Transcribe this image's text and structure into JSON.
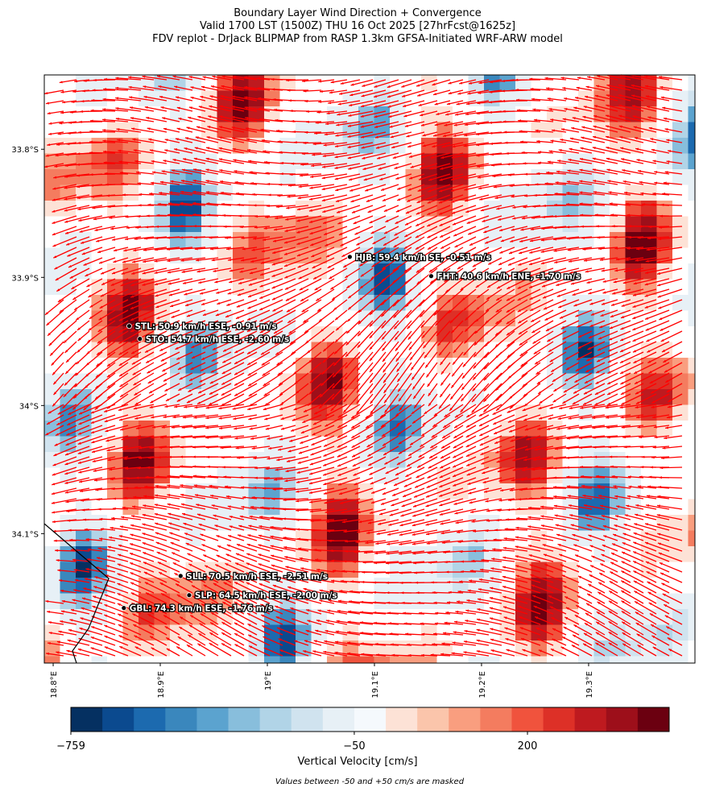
{
  "title": [
    "Boundary Layer Wind Direction + Convergence",
    "Valid 1700 LST (1500Z) THU 16 Oct 2025 [27hrFcst@1625z]",
    "FDV replot - DrJack BLIPMAP from RASP 1.3km GFSA-Initiated WRF-ARW model"
  ],
  "map": {
    "xlim": [
      18.7917,
      19.3993
    ],
    "ylim": [
      -34.201,
      -33.742
    ],
    "xticks": [
      {
        "value": 18.8,
        "label": "18.8°E"
      },
      {
        "value": 18.9,
        "label": "18.9°E"
      },
      {
        "value": 19.0,
        "label": "19°E"
      },
      {
        "value": 19.1,
        "label": "19.1°E"
      },
      {
        "value": 19.2,
        "label": "19.2°E"
      },
      {
        "value": 19.3,
        "label": "19.3°E"
      }
    ],
    "yticks": [
      {
        "value": -33.8,
        "label": "33.8°S"
      },
      {
        "value": -33.9,
        "label": "33.9°S"
      },
      {
        "value": -34.0,
        "label": "34°S"
      },
      {
        "value": -34.1,
        "label": "34.1°S"
      }
    ],
    "stations": [
      {
        "label": "HJB: 59.4 km/h SE, -0.51 m/s",
        "lon": 19.077,
        "lat": -33.884
      },
      {
        "label": "FHT: 40.6 km/h ENE, -1.70 m/s",
        "lon": 19.153,
        "lat": -33.899
      },
      {
        "label": "STL: 50.9 km/h ESE, -0.91 m/s",
        "lon": 18.871,
        "lat": -33.938
      },
      {
        "label": "STO: 54.7 km/h ESE, -2.60 m/s",
        "lon": 18.881,
        "lat": -33.948
      },
      {
        "label": "SLL: 70.5 km/h ESE, -2.51 m/s",
        "lon": 18.919,
        "lat": -34.133
      },
      {
        "label": "SLP: 64.5 km/h ESE, -2.00 m/s",
        "lon": 18.927,
        "lat": -34.148
      },
      {
        "label": "GBL: 74.3 km/h ESE, -1.76 m/s",
        "lon": 18.866,
        "lat": -34.158
      }
    ]
  },
  "colorbar": {
    "label": "Vertical Velocity [cm/s]",
    "boundaries": [
      -759,
      -675,
      -590,
      -505,
      -420,
      -335,
      -250,
      -180,
      -115,
      -50,
      50,
      100,
      125,
      150,
      175,
      225,
      300,
      400,
      500,
      600
    ],
    "colors": [
      "#053061",
      "#0b4a8f",
      "#1c6aaf",
      "#3a87bd",
      "#5ba3cf",
      "#88bedc",
      "#b1d4e7",
      "#d0e3ef",
      "#e7f0f6",
      "#f5f9fd",
      "#fde2d6",
      "#fbc5ab",
      "#f99e7f",
      "#f47c5f",
      "#f0533d",
      "#dd3027",
      "#be1a1f",
      "#9d0f1a",
      "#6b0010"
    ],
    "ticks": [
      {
        "value": -759,
        "label": "−759"
      },
      {
        "value": -50,
        "label": "−50"
      },
      200
    ]
  },
  "note": "Values between -50 and +50 cm/s are masked"
}
